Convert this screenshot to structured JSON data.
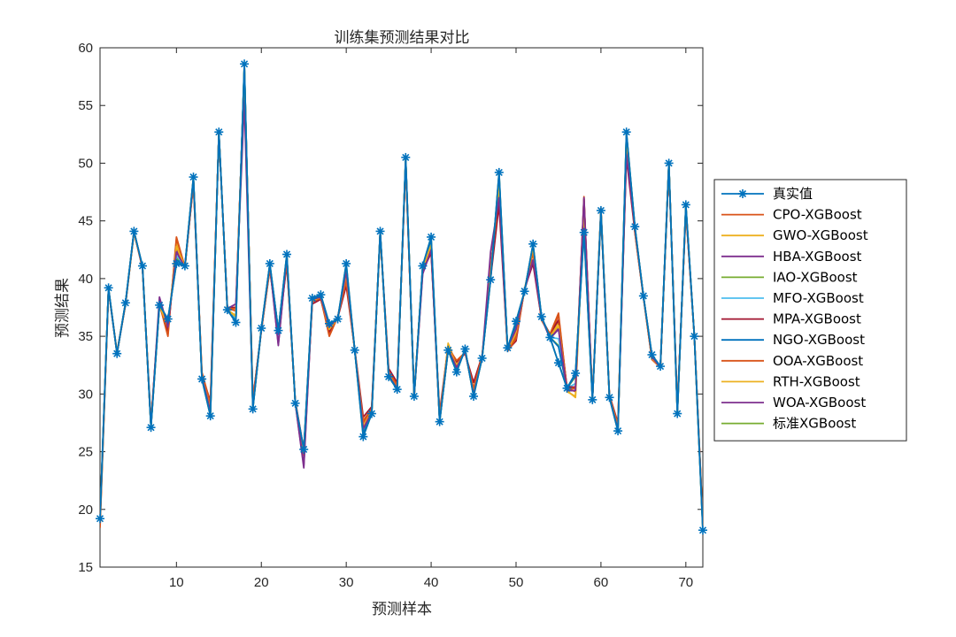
{
  "chart_data": {
    "type": "line",
    "title": "训练集预测结果对比",
    "xlabel": "预测样本",
    "ylabel": "预测结果",
    "xlim": [
      1,
      72
    ],
    "ylim": [
      15,
      60
    ],
    "xticks": [
      10,
      20,
      30,
      40,
      50,
      60,
      70
    ],
    "yticks": [
      15,
      20,
      25,
      30,
      35,
      40,
      45,
      50,
      55,
      60
    ],
    "grid": false,
    "legend_position": "right",
    "x": [
      1,
      2,
      3,
      4,
      5,
      6,
      7,
      8,
      9,
      10,
      11,
      12,
      13,
      14,
      15,
      16,
      17,
      18,
      19,
      20,
      21,
      22,
      23,
      24,
      25,
      26,
      27,
      28,
      29,
      30,
      31,
      32,
      33,
      34,
      35,
      36,
      37,
      38,
      39,
      40,
      41,
      42,
      43,
      44,
      45,
      46,
      47,
      48,
      49,
      50,
      51,
      52,
      53,
      54,
      55,
      56,
      57,
      58,
      59,
      60,
      61,
      62,
      63,
      64,
      65,
      66,
      67,
      68,
      69,
      70,
      71,
      72
    ],
    "series": [
      {
        "name": "真实值",
        "color": "#0072BD",
        "marker": "asterisk",
        "values": [
          19.2,
          39.2,
          33.5,
          37.9,
          44.1,
          41.1,
          27.1,
          37.7,
          36.5,
          41.3,
          41.1,
          48.8,
          31.3,
          28.1,
          52.7,
          37.3,
          36.2,
          58.6,
          28.7,
          35.7,
          41.3,
          35.5,
          42.1,
          29.2,
          25.2,
          38.3,
          38.6,
          36.1,
          36.5,
          41.3,
          33.8,
          26.3,
          28.3,
          44.1,
          31.5,
          30.4,
          50.5,
          29.8,
          41.1,
          43.6,
          27.6,
          33.8,
          31.9,
          33.9,
          29.8,
          33.1,
          39.9,
          49.2,
          34.0,
          36.3,
          38.9,
          43.0,
          36.7,
          34.9,
          32.7,
          30.5,
          31.8,
          44.0,
          29.5,
          45.9,
          29.7,
          26.8,
          52.7,
          44.5,
          38.5,
          33.4,
          32.4,
          50.0,
          28.3,
          46.4,
          35.0,
          18.2
        ]
      },
      {
        "name": "CPO-XGBoost",
        "color": "#D95319",
        "values": [
          18.4,
          39.0,
          33.6,
          37.8,
          44.0,
          41.0,
          27.3,
          37.9,
          35.2,
          43.4,
          41.0,
          48.3,
          31.8,
          29.0,
          52.5,
          37.4,
          37.2,
          57.9,
          29.4,
          35.5,
          41.0,
          35.3,
          41.5,
          29.3,
          24.8,
          38.0,
          38.3,
          35.2,
          36.7,
          40.0,
          33.8,
          27.5,
          28.6,
          43.8,
          31.8,
          30.7,
          50.0,
          29.9,
          41.0,
          42.8,
          28.0,
          33.9,
          32.7,
          33.6,
          30.3,
          33.2,
          40.7,
          47.8,
          33.9,
          35.0,
          39.0,
          42.4,
          36.4,
          35.1,
          36.8,
          30.5,
          30.2,
          46.9,
          29.6,
          45.8,
          29.8,
          27.3,
          51.9,
          44.1,
          38.5,
          33.0,
          32.3,
          49.8,
          28.7,
          46.0,
          35.0,
          18.9
        ]
      },
      {
        "name": "GWO-XGBoost",
        "color": "#EDB120",
        "values": [
          18.8,
          39.1,
          33.6,
          37.7,
          44.0,
          41.0,
          27.4,
          37.7,
          35.6,
          43.0,
          41.0,
          48.5,
          31.6,
          28.7,
          52.6,
          37.3,
          36.8,
          58.1,
          29.1,
          35.6,
          41.1,
          35.4,
          41.7,
          29.2,
          24.9,
          38.1,
          38.4,
          35.5,
          36.6,
          40.3,
          33.8,
          27.2,
          28.5,
          43.9,
          31.7,
          30.6,
          50.2,
          29.8,
          41.0,
          43.0,
          27.8,
          34.4,
          32.5,
          33.7,
          30.1,
          33.1,
          40.5,
          48.1,
          33.8,
          35.3,
          39.0,
          42.6,
          36.5,
          35.0,
          36.2,
          30.3,
          29.7,
          46.4,
          29.6,
          45.8,
          29.7,
          27.1,
          52.1,
          44.2,
          38.5,
          33.1,
          32.3,
          49.9,
          28.6,
          46.1,
          35.0,
          18.8
        ]
      },
      {
        "name": "HBA-XGBoost",
        "color": "#7E2F8E",
        "values": [
          19.0,
          39.1,
          33.5,
          37.8,
          44.1,
          41.0,
          27.2,
          37.8,
          35.9,
          42.5,
          41.0,
          48.6,
          31.5,
          28.5,
          52.6,
          37.3,
          36.6,
          58.3,
          28.9,
          35.6,
          41.2,
          34.3,
          41.8,
          29.2,
          23.6,
          38.2,
          38.4,
          35.8,
          36.6,
          40.6,
          33.8,
          27.0,
          28.4,
          44.0,
          31.6,
          30.5,
          50.3,
          29.8,
          40.4,
          42.6,
          27.7,
          33.9,
          32.3,
          33.7,
          30.0,
          33.1,
          41.0,
          47.0,
          34.0,
          35.6,
          39.0,
          41.6,
          36.6,
          34.8,
          35.7,
          30.3,
          30.3,
          46.9,
          29.5,
          45.8,
          29.7,
          27.0,
          51.0,
          44.3,
          38.5,
          33.2,
          32.3,
          49.9,
          28.5,
          46.2,
          35.0,
          18.6
        ]
      },
      {
        "name": "IAO-XGBoost",
        "color": "#77AC30",
        "values": [
          19.1,
          39.1,
          33.5,
          37.8,
          44.1,
          41.0,
          27.2,
          37.7,
          36.2,
          41.8,
          41.0,
          48.7,
          31.4,
          28.3,
          52.6,
          37.3,
          36.4,
          58.4,
          28.8,
          35.6,
          41.2,
          35.5,
          42.0,
          29.2,
          25.0,
          38.2,
          38.5,
          35.9,
          36.5,
          40.8,
          33.8,
          26.8,
          28.3,
          44.0,
          31.5,
          30.4,
          50.4,
          29.8,
          41.0,
          43.2,
          27.6,
          33.8,
          32.1,
          33.8,
          29.9,
          33.1,
          40.2,
          48.8,
          34.0,
          35.9,
          38.9,
          42.8,
          36.6,
          34.9,
          34.2,
          30.5,
          31.5,
          44.8,
          29.5,
          45.9,
          29.7,
          26.9,
          52.5,
          44.4,
          38.5,
          33.3,
          32.3,
          50.0,
          28.4,
          46.3,
          35.0,
          18.4
        ]
      },
      {
        "name": "MFO-XGBoost",
        "color": "#4DBEEE",
        "values": [
          19.1,
          39.1,
          33.5,
          37.9,
          44.1,
          41.0,
          27.2,
          37.7,
          36.1,
          42.0,
          41.1,
          48.6,
          31.4,
          28.4,
          52.6,
          37.3,
          36.5,
          58.4,
          28.8,
          35.6,
          41.2,
          35.4,
          41.9,
          29.2,
          24.9,
          38.2,
          38.5,
          35.8,
          36.5,
          40.7,
          33.8,
          26.9,
          28.3,
          44.0,
          31.6,
          30.4,
          50.4,
          29.8,
          40.9,
          43.1,
          27.7,
          33.8,
          32.2,
          33.8,
          30.0,
          33.1,
          40.3,
          48.5,
          34.0,
          35.8,
          38.9,
          42.7,
          36.6,
          34.9,
          34.8,
          30.5,
          30.9,
          45.6,
          29.5,
          45.9,
          29.7,
          26.9,
          52.3,
          44.4,
          38.5,
          33.3,
          32.3,
          50.0,
          28.4,
          46.3,
          35.0,
          18.5
        ]
      },
      {
        "name": "MPA-XGBoost",
        "color": "#A2142F",
        "values": [
          19.0,
          39.1,
          33.6,
          37.8,
          44.0,
          40.9,
          27.6,
          37.8,
          35.4,
          42.8,
          41.0,
          48.2,
          31.6,
          29.4,
          52.5,
          37.5,
          37.5,
          57.7,
          29.5,
          35.5,
          40.8,
          35.2,
          41.2,
          29.4,
          25.2,
          37.8,
          38.2,
          35.4,
          36.6,
          39.4,
          33.9,
          28.0,
          28.9,
          43.8,
          32.2,
          31.0,
          49.8,
          30.0,
          40.7,
          42.2,
          28.4,
          34.1,
          32.8,
          33.5,
          31.0,
          33.3,
          40.0,
          46.4,
          33.8,
          34.6,
          39.1,
          41.3,
          36.5,
          35.2,
          36.4,
          30.6,
          30.6,
          45.3,
          29.7,
          45.6,
          29.9,
          27.5,
          50.5,
          44.0,
          38.4,
          33.1,
          32.4,
          49.7,
          28.8,
          45.9,
          35.0,
          18.8
        ]
      },
      {
        "name": "NGO-XGBoost",
        "color": "#0072BD",
        "values": [
          19.2,
          39.1,
          33.5,
          37.9,
          44.1,
          41.0,
          27.2,
          37.7,
          36.3,
          41.6,
          41.1,
          48.7,
          31.4,
          28.2,
          52.6,
          37.3,
          36.3,
          58.5,
          28.8,
          35.6,
          41.2,
          35.5,
          42.0,
          29.2,
          25.0,
          38.3,
          38.5,
          36.0,
          36.5,
          41.0,
          33.8,
          26.6,
          28.3,
          44.0,
          31.5,
          30.4,
          50.4,
          29.8,
          41.0,
          43.4,
          27.6,
          33.8,
          32.0,
          33.8,
          29.9,
          33.1,
          40.0,
          49.0,
          34.0,
          36.0,
          38.9,
          42.9,
          36.7,
          34.9,
          34.1,
          30.5,
          31.6,
          44.3,
          29.5,
          45.9,
          29.7,
          26.8,
          52.6,
          44.4,
          38.5,
          33.3,
          32.4,
          50.0,
          28.4,
          46.3,
          35.0,
          18.3
        ]
      },
      {
        "name": "OOA-XGBoost",
        "color": "#D95319",
        "values": [
          18.6,
          39.0,
          33.6,
          37.8,
          44.0,
          41.0,
          27.4,
          37.8,
          35.0,
          43.6,
          41.0,
          48.4,
          31.9,
          29.2,
          52.5,
          37.4,
          37.4,
          57.8,
          29.5,
          35.5,
          40.9,
          35.2,
          41.4,
          29.3,
          24.7,
          38.0,
          38.3,
          35.0,
          36.7,
          39.8,
          33.8,
          27.7,
          28.7,
          43.8,
          31.9,
          30.8,
          49.9,
          30.0,
          40.9,
          42.5,
          28.1,
          34.0,
          32.9,
          33.6,
          30.5,
          33.3,
          40.8,
          47.5,
          33.7,
          34.8,
          39.1,
          42.2,
          36.4,
          35.2,
          37.0,
          30.4,
          30.5,
          47.1,
          29.6,
          46.1,
          29.8,
          27.4,
          51.5,
          44.0,
          38.4,
          33.0,
          32.3,
          49.8,
          28.8,
          45.9,
          35.0,
          19.0
        ]
      },
      {
        "name": "RTH-XGBoost",
        "color": "#EDB120",
        "values": [
          18.9,
          39.1,
          33.6,
          37.8,
          44.0,
          41.0,
          27.3,
          37.7,
          35.8,
          42.8,
          41.0,
          48.5,
          31.6,
          28.6,
          52.6,
          37.3,
          36.7,
          58.2,
          29.0,
          35.6,
          41.1,
          35.4,
          41.8,
          29.2,
          25.0,
          38.1,
          38.4,
          35.6,
          36.6,
          40.4,
          33.8,
          27.1,
          28.4,
          43.9,
          31.7,
          30.5,
          50.3,
          29.8,
          40.9,
          42.9,
          27.8,
          34.2,
          32.4,
          33.7,
          30.1,
          33.1,
          40.5,
          48.2,
          33.9,
          35.4,
          39.0,
          42.7,
          36.5,
          35.0,
          35.9,
          30.2,
          29.8,
          46.0,
          29.6,
          45.8,
          29.7,
          27.1,
          52.2,
          44.3,
          38.5,
          33.1,
          32.3,
          49.9,
          28.5,
          46.2,
          35.0,
          18.7
        ]
      },
      {
        "name": "WOA-XGBoost",
        "color": "#7E2F8E",
        "values": [
          19.0,
          39.1,
          33.5,
          37.8,
          44.1,
          41.0,
          27.2,
          38.4,
          35.8,
          42.3,
          41.0,
          48.6,
          31.5,
          28.5,
          52.6,
          37.4,
          37.8,
          55.4,
          29.0,
          35.6,
          41.2,
          34.2,
          41.9,
          29.2,
          23.8,
          38.2,
          38.4,
          35.8,
          36.6,
          40.6,
          33.8,
          27.0,
          28.4,
          44.0,
          31.6,
          30.5,
          50.3,
          29.8,
          40.4,
          42.5,
          27.7,
          33.9,
          32.3,
          33.7,
          30.0,
          33.1,
          42.3,
          47.0,
          34.0,
          35.6,
          39.0,
          41.6,
          36.6,
          34.8,
          35.6,
          30.3,
          30.3,
          47.0,
          29.5,
          45.8,
          29.7,
          27.0,
          50.8,
          44.3,
          38.5,
          33.2,
          32.3,
          49.9,
          28.5,
          46.2,
          35.0,
          18.6
        ]
      },
      {
        "name": "标准XGBoost",
        "color": "#77AC30",
        "values": [
          19.2,
          39.2,
          33.5,
          37.9,
          44.1,
          41.1,
          27.1,
          37.7,
          36.5,
          41.3,
          41.1,
          48.8,
          31.3,
          28.1,
          52.7,
          37.3,
          36.2,
          58.6,
          28.7,
          35.7,
          41.3,
          35.5,
          42.1,
          29.2,
          25.2,
          38.3,
          38.6,
          36.1,
          36.5,
          41.3,
          33.8,
          26.3,
          28.3,
          44.1,
          31.5,
          30.4,
          50.5,
          29.8,
          41.1,
          43.6,
          27.6,
          33.8,
          31.9,
          33.9,
          29.8,
          33.1,
          39.9,
          49.2,
          34.0,
          36.3,
          38.9,
          43.0,
          36.7,
          34.9,
          32.7,
          30.5,
          31.8,
          44.0,
          29.5,
          45.9,
          29.7,
          26.8,
          52.7,
          44.5,
          38.5,
          33.4,
          32.4,
          50.0,
          28.3,
          46.4,
          35.0,
          18.2
        ]
      }
    ]
  }
}
